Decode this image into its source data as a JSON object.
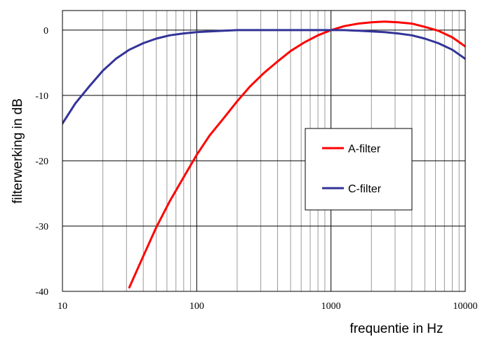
{
  "chart_data": {
    "type": "line",
    "xlabel": "frequentie in Hz",
    "ylabel": "filterwerking in dB",
    "x_scale": "log",
    "xlim": [
      10,
      10000
    ],
    "ylim": [
      -40,
      3
    ],
    "x_ticks": [
      10,
      100,
      1000,
      10000
    ],
    "x_tick_labels": [
      "10",
      "100",
      "1000",
      "10000"
    ],
    "y_ticks": [
      0,
      -10,
      -20,
      -30,
      -40
    ],
    "y_tick_labels": [
      "0",
      "-10",
      "-20",
      "-30",
      "-40"
    ],
    "grid": true,
    "legend_position": "right",
    "series": [
      {
        "name": "A-filter",
        "color": "#ff0000",
        "x": [
          31.5,
          40,
          50,
          63,
          80,
          100,
          125,
          160,
          200,
          250,
          315,
          400,
          500,
          630,
          800,
          1000,
          1250,
          1600,
          2000,
          2500,
          3150,
          4000,
          5000,
          6300,
          8000,
          10000
        ],
        "y": [
          -39.4,
          -34.6,
          -30.2,
          -26.2,
          -22.5,
          -19.1,
          -16.1,
          -13.4,
          -10.9,
          -8.6,
          -6.6,
          -4.8,
          -3.2,
          -1.9,
          -0.8,
          0.0,
          0.6,
          1.0,
          1.2,
          1.3,
          1.2,
          1.0,
          0.5,
          -0.1,
          -1.1,
          -2.5
        ]
      },
      {
        "name": "C-filter",
        "color": "#333399",
        "x": [
          10,
          12.5,
          16,
          20,
          25,
          31.5,
          40,
          50,
          63,
          80,
          100,
          125,
          160,
          200,
          250,
          315,
          400,
          500,
          630,
          800,
          1000,
          1250,
          1600,
          2000,
          2500,
          3150,
          4000,
          5000,
          6300,
          8000,
          10000
        ],
        "y": [
          -14.3,
          -11.2,
          -8.5,
          -6.2,
          -4.4,
          -3.0,
          -2.0,
          -1.3,
          -0.8,
          -0.5,
          -0.3,
          -0.2,
          -0.1,
          0.0,
          0.0,
          0.0,
          0.0,
          0.0,
          0.0,
          0.0,
          0.0,
          0.0,
          -0.1,
          -0.2,
          -0.3,
          -0.5,
          -0.8,
          -1.3,
          -2.0,
          -3.0,
          -4.4
        ]
      }
    ]
  }
}
